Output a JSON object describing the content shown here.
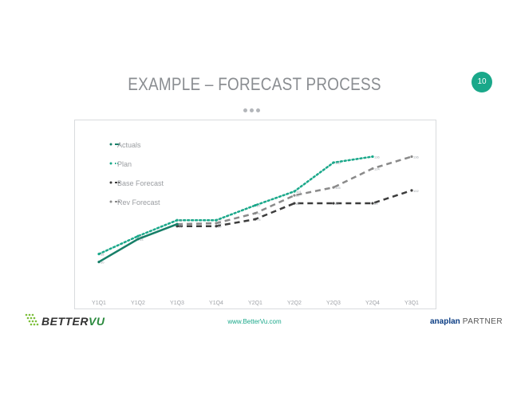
{
  "slide": {
    "title": "EXAMPLE – FORECAST PROCESS",
    "page_number": "10",
    "footer_url": "www.BetterVu.com",
    "logo_left": {
      "text_a": "BETTER",
      "text_b": "VU"
    },
    "logo_right": {
      "brand": "anaplan",
      "suffix": "PARTNER"
    }
  },
  "colors": {
    "actuals": "#177f68",
    "plan": "#1aa88a",
    "base_forecast": "#3c3c3c",
    "rev_forecast": "#8a8a8a",
    "accent": "#1aa88a"
  },
  "chart_data": {
    "type": "line",
    "categories": [
      "Y1Q1",
      "Y1Q2",
      "Y1Q3",
      "Y1Q4",
      "Y2Q1",
      "Y2Q2",
      "Y2Q3",
      "Y2Q4",
      "Y3Q1"
    ],
    "ylim": [
      0,
      150
    ],
    "legend_position": "top-left",
    "series": [
      {
        "name": "Actuals",
        "style": "solid",
        "values": [
          30,
          53,
          68,
          null,
          null,
          null,
          null,
          null,
          null
        ]
      },
      {
        "name": "Plan",
        "style": "dotted",
        "values": [
          38,
          56,
          72,
          72,
          87,
          101,
          130,
          136,
          null
        ]
      },
      {
        "name": "Base Forecast",
        "style": "dashed",
        "values": [
          null,
          null,
          66,
          66,
          73,
          89,
          89,
          89,
          102
        ]
      },
      {
        "name": "Rev Forecast",
        "style": "dashed",
        "values": [
          null,
          null,
          68,
          69,
          79,
          97,
          105,
          124,
          136
        ]
      }
    ]
  }
}
